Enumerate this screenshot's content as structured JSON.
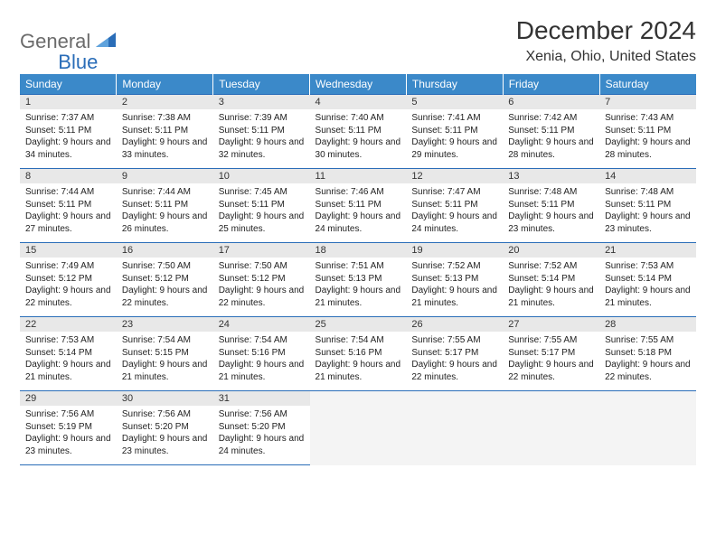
{
  "logo": {
    "text1": "General",
    "text2": "Blue"
  },
  "title": "December 2024",
  "location": "Xenia, Ohio, United States",
  "colors": {
    "header_bg": "#3b89c9",
    "header_text": "#ffffff",
    "accent": "#2a6db8",
    "daynum_bg": "#e8e8e8",
    "logo_gray": "#6b6b6b",
    "page_bg": "#ffffff",
    "text": "#222222"
  },
  "typography": {
    "title_fontsize": 28,
    "location_fontsize": 16,
    "weekday_fontsize": 12,
    "daynum_fontsize": 11,
    "cell_fontsize": 10,
    "logo_fontsize": 22
  },
  "weekdays": [
    "Sunday",
    "Monday",
    "Tuesday",
    "Wednesday",
    "Thursday",
    "Friday",
    "Saturday"
  ],
  "weeks": [
    [
      {
        "n": "1",
        "sr": "7:37 AM",
        "ss": "5:11 PM",
        "dl": "9 hours and 34 minutes."
      },
      {
        "n": "2",
        "sr": "7:38 AM",
        "ss": "5:11 PM",
        "dl": "9 hours and 33 minutes."
      },
      {
        "n": "3",
        "sr": "7:39 AM",
        "ss": "5:11 PM",
        "dl": "9 hours and 32 minutes."
      },
      {
        "n": "4",
        "sr": "7:40 AM",
        "ss": "5:11 PM",
        "dl": "9 hours and 30 minutes."
      },
      {
        "n": "5",
        "sr": "7:41 AM",
        "ss": "5:11 PM",
        "dl": "9 hours and 29 minutes."
      },
      {
        "n": "6",
        "sr": "7:42 AM",
        "ss": "5:11 PM",
        "dl": "9 hours and 28 minutes."
      },
      {
        "n": "7",
        "sr": "7:43 AM",
        "ss": "5:11 PM",
        "dl": "9 hours and 28 minutes."
      }
    ],
    [
      {
        "n": "8",
        "sr": "7:44 AM",
        "ss": "5:11 PM",
        "dl": "9 hours and 27 minutes."
      },
      {
        "n": "9",
        "sr": "7:44 AM",
        "ss": "5:11 PM",
        "dl": "9 hours and 26 minutes."
      },
      {
        "n": "10",
        "sr": "7:45 AM",
        "ss": "5:11 PM",
        "dl": "9 hours and 25 minutes."
      },
      {
        "n": "11",
        "sr": "7:46 AM",
        "ss": "5:11 PM",
        "dl": "9 hours and 24 minutes."
      },
      {
        "n": "12",
        "sr": "7:47 AM",
        "ss": "5:11 PM",
        "dl": "9 hours and 24 minutes."
      },
      {
        "n": "13",
        "sr": "7:48 AM",
        "ss": "5:11 PM",
        "dl": "9 hours and 23 minutes."
      },
      {
        "n": "14",
        "sr": "7:48 AM",
        "ss": "5:11 PM",
        "dl": "9 hours and 23 minutes."
      }
    ],
    [
      {
        "n": "15",
        "sr": "7:49 AM",
        "ss": "5:12 PM",
        "dl": "9 hours and 22 minutes."
      },
      {
        "n": "16",
        "sr": "7:50 AM",
        "ss": "5:12 PM",
        "dl": "9 hours and 22 minutes."
      },
      {
        "n": "17",
        "sr": "7:50 AM",
        "ss": "5:12 PM",
        "dl": "9 hours and 22 minutes."
      },
      {
        "n": "18",
        "sr": "7:51 AM",
        "ss": "5:13 PM",
        "dl": "9 hours and 21 minutes."
      },
      {
        "n": "19",
        "sr": "7:52 AM",
        "ss": "5:13 PM",
        "dl": "9 hours and 21 minutes."
      },
      {
        "n": "20",
        "sr": "7:52 AM",
        "ss": "5:14 PM",
        "dl": "9 hours and 21 minutes."
      },
      {
        "n": "21",
        "sr": "7:53 AM",
        "ss": "5:14 PM",
        "dl": "9 hours and 21 minutes."
      }
    ],
    [
      {
        "n": "22",
        "sr": "7:53 AM",
        "ss": "5:14 PM",
        "dl": "9 hours and 21 minutes."
      },
      {
        "n": "23",
        "sr": "7:54 AM",
        "ss": "5:15 PM",
        "dl": "9 hours and 21 minutes."
      },
      {
        "n": "24",
        "sr": "7:54 AM",
        "ss": "5:16 PM",
        "dl": "9 hours and 21 minutes."
      },
      {
        "n": "25",
        "sr": "7:54 AM",
        "ss": "5:16 PM",
        "dl": "9 hours and 21 minutes."
      },
      {
        "n": "26",
        "sr": "7:55 AM",
        "ss": "5:17 PM",
        "dl": "9 hours and 22 minutes."
      },
      {
        "n": "27",
        "sr": "7:55 AM",
        "ss": "5:17 PM",
        "dl": "9 hours and 22 minutes."
      },
      {
        "n": "28",
        "sr": "7:55 AM",
        "ss": "5:18 PM",
        "dl": "9 hours and 22 minutes."
      }
    ],
    [
      {
        "n": "29",
        "sr": "7:56 AM",
        "ss": "5:19 PM",
        "dl": "9 hours and 23 minutes."
      },
      {
        "n": "30",
        "sr": "7:56 AM",
        "ss": "5:20 PM",
        "dl": "9 hours and 23 minutes."
      },
      {
        "n": "31",
        "sr": "7:56 AM",
        "ss": "5:20 PM",
        "dl": "9 hours and 24 minutes."
      },
      null,
      null,
      null,
      null
    ]
  ],
  "labels": {
    "sunrise": "Sunrise:",
    "sunset": "Sunset:",
    "daylight": "Daylight:"
  }
}
